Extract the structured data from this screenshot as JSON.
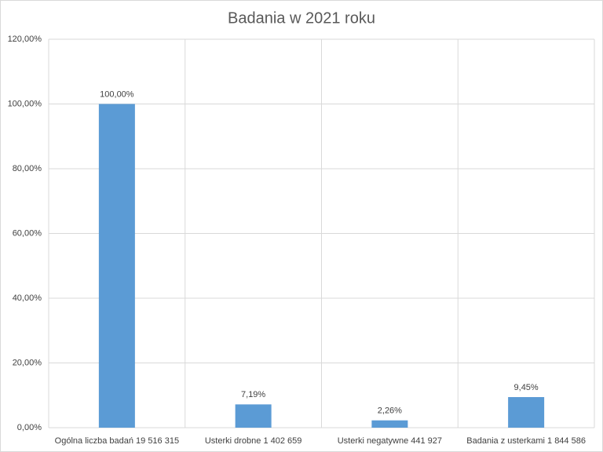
{
  "chart_data": {
    "type": "bar",
    "title": "Badania w 2021 roku",
    "categories": [
      "Ogólna liczba badań 19 516 315",
      "Usterki drobne 1 402 659",
      "Usterki negatywne 441 927",
      "Badania z usterkami 1 844 586"
    ],
    "values": [
      100,
      7.19,
      2.26,
      9.45
    ],
    "value_labels": [
      "100,00%",
      "7,19%",
      "2,26%",
      "9,45%"
    ],
    "color": "#5b9bd5",
    "ylim": [
      0,
      120
    ],
    "yticks": [
      {
        "value": 0,
        "label": "0,00%"
      },
      {
        "value": 20,
        "label": "20,00%"
      },
      {
        "value": 40,
        "label": "40,00%"
      },
      {
        "value": 60,
        "label": "60,00%"
      },
      {
        "value": 80,
        "label": "80,00%"
      },
      {
        "value": 100,
        "label": "100,00%"
      },
      {
        "value": 120,
        "label": "120,00%"
      }
    ],
    "grid": true
  }
}
